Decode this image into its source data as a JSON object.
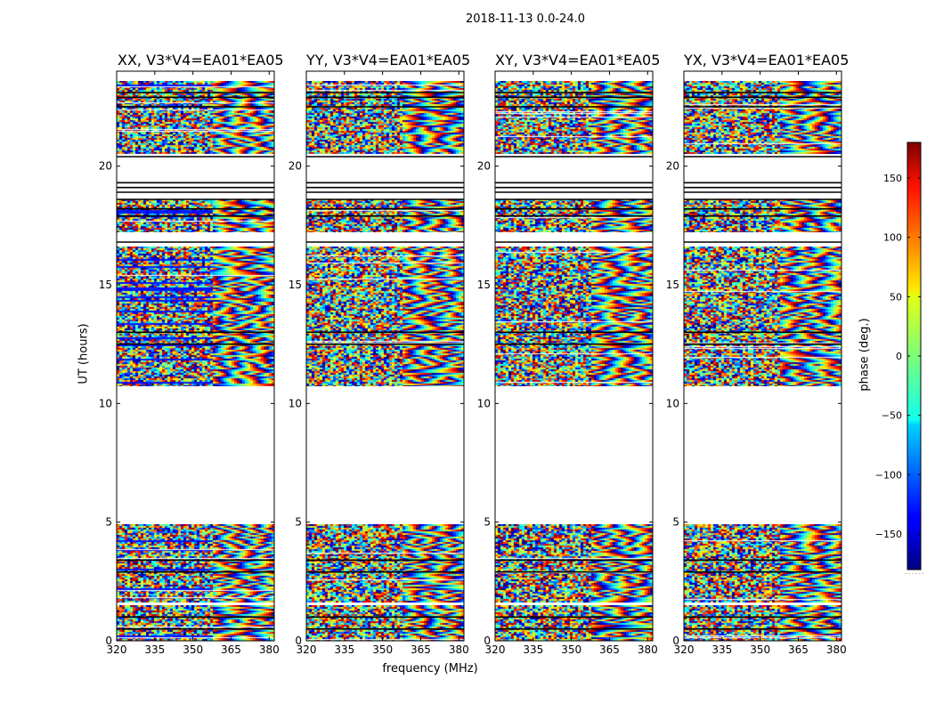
{
  "chart_data": {
    "type": "heatmap",
    "suptitle": "2018-11-13 0.0-24.0",
    "xlabel": "frequency (MHz)",
    "ylabel": "UT (hours)",
    "xlim": [
      320,
      382
    ],
    "ylim": [
      0,
      24
    ],
    "x_ticks": [
      320,
      335,
      350,
      365,
      380
    ],
    "y_ticks": [
      0,
      5,
      10,
      15,
      20
    ],
    "panels": [
      {
        "title": "XX, V3*V4=EA01*EA05",
        "polarization": "XX"
      },
      {
        "title": "YY, V3*V4=EA01*EA05",
        "polarization": "YY"
      },
      {
        "title": "XY, V3*V4=EA01*EA05",
        "polarization": "XY"
      },
      {
        "title": "YX, V3*V4=EA01*EA05",
        "polarization": "YX"
      }
    ],
    "data_segments_hours": [
      [
        0.0,
        1.5
      ],
      [
        1.6,
        4.9
      ],
      [
        10.7,
        16.6
      ],
      [
        17.2,
        18.6
      ],
      [
        20.5,
        23.6
      ]
    ],
    "flagged_lines_hours": [
      0.5,
      1.0,
      2.9,
      3.4,
      12.5,
      13.0,
      16.8,
      17.9,
      18.2,
      18.6,
      18.9,
      19.1,
      19.3,
      20.4,
      22.5,
      22.9,
      23.1
    ],
    "colorbar": {
      "label": "phase (deg.)",
      "range": [
        -180,
        180
      ],
      "ticks": [
        150,
        100,
        50,
        0,
        -50,
        -100,
        -150
      ],
      "tick_labels": [
        "150",
        "100",
        "50",
        "0",
        "−50",
        "−100",
        "−150"
      ],
      "colormap": "jet"
    }
  }
}
